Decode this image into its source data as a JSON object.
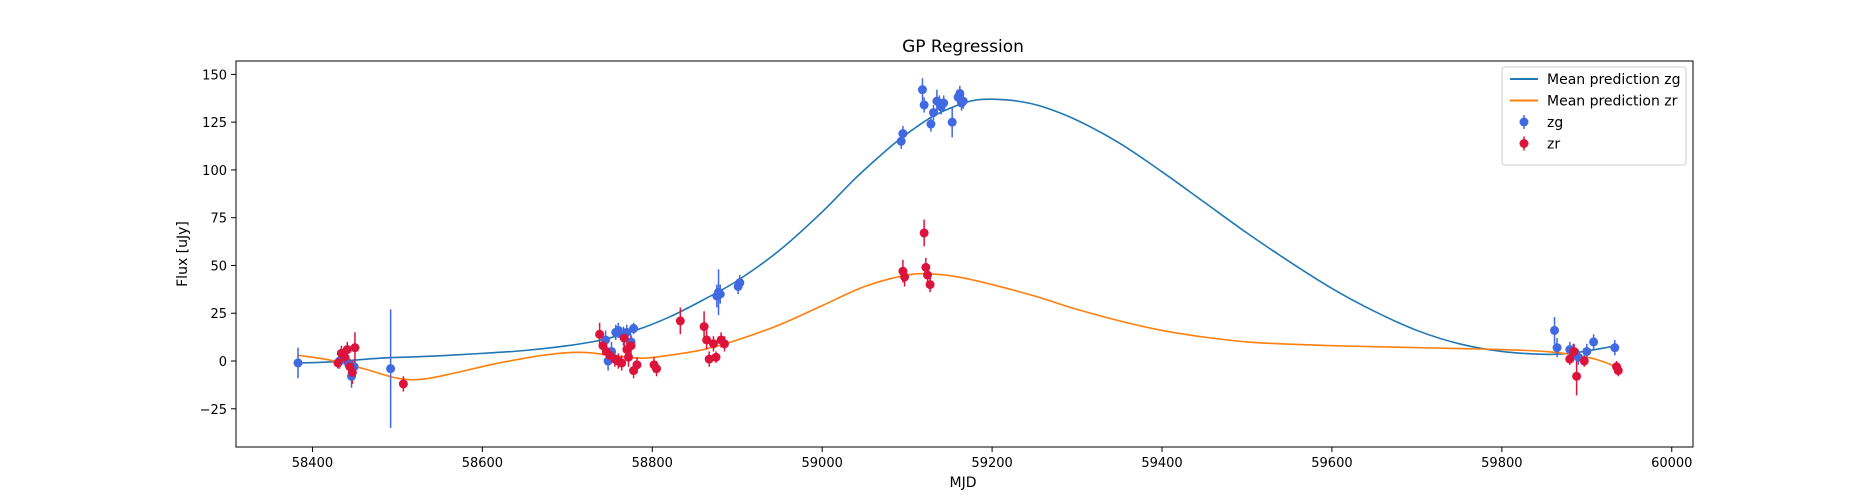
{
  "chart_data": {
    "type": "scatter",
    "title": "GP Regression",
    "xlabel": "MJD",
    "ylabel": "Flux [uJy]",
    "xlim": [
      58310,
      60025
    ],
    "ylim": [
      -45,
      157
    ],
    "xticks": [
      58400,
      58600,
      58800,
      59000,
      59200,
      59400,
      59600,
      59800,
      60000
    ],
    "yticks": [
      -25,
      0,
      25,
      50,
      75,
      100,
      125,
      150
    ],
    "grid": false,
    "legend_position": "top-right",
    "colors": {
      "line_zg": "#1f77b4",
      "line_zr": "#ff7f0e",
      "points_zg": "#4169e1",
      "points_zr": "#dc143c"
    },
    "lines": [
      {
        "name": "Mean prediction zg",
        "color": "#1f77b4",
        "x": [
          58383,
          58420,
          58480,
          58540,
          58600,
          58650,
          58700,
          58740,
          58780,
          58820,
          58860,
          58900,
          58950,
          59000,
          59040,
          59080,
          59100,
          59130,
          59160,
          59180,
          59200,
          59230,
          59260,
          59300,
          59350,
          59400,
          59450,
          59500,
          59550,
          59600,
          59650,
          59700,
          59750,
          59800,
          59850,
          59880,
          59910,
          59935
        ],
        "y": [
          -1,
          -0.5,
          1.5,
          2.5,
          4,
          5.5,
          8,
          11,
          16,
          23,
          32,
          42,
          58,
          78,
          96,
          112,
          119,
          128,
          134,
          136.5,
          137,
          136,
          133,
          126,
          114,
          99,
          83,
          67,
          52,
          38,
          26,
          16,
          9,
          5,
          3.5,
          4,
          6,
          8
        ]
      },
      {
        "name": "Mean prediction zr",
        "color": "#ff7f0e",
        "x": [
          58383,
          58420,
          58460,
          58500,
          58530,
          58570,
          58620,
          58680,
          58720,
          58760,
          58790,
          58820,
          58860,
          58900,
          58950,
          59000,
          59050,
          59100,
          59130,
          59160,
          59200,
          59250,
          59300,
          59350,
          59400,
          59450,
          59500,
          59550,
          59600,
          59650,
          59700,
          59750,
          59800,
          59850,
          59880,
          59910,
          59935
        ],
        "y": [
          3,
          0.5,
          -4,
          -9,
          -9.5,
          -6,
          -1,
          3.5,
          4.5,
          2.5,
          1.5,
          3,
          6,
          11,
          19,
          29,
          39,
          45,
          45.5,
          44,
          40,
          34,
          27,
          21,
          16,
          12.5,
          10,
          8.8,
          8,
          7.5,
          7,
          6.5,
          6,
          5,
          3.5,
          1,
          -3
        ]
      }
    ],
    "series": [
      {
        "name": "zg",
        "color": "#4169e1",
        "x": [
          58383,
          58432,
          58438,
          58443,
          58446,
          58449,
          58492,
          58745,
          58748,
          58752,
          58757,
          58760,
          58766,
          58770,
          58775,
          58778,
          58876,
          58878,
          58880,
          58901,
          58903,
          59093,
          59095,
          59118,
          59120,
          59128,
          59131,
          59135,
          59138,
          59140,
          59143,
          59153,
          59160,
          59162,
          59164,
          59166,
          59862,
          59865,
          59880,
          59884,
          59890,
          59900,
          59908,
          59933
        ],
        "y": [
          -1,
          0,
          2,
          -2,
          -8,
          -3,
          -4,
          11,
          0,
          5,
          15,
          16,
          13,
          15,
          10,
          17,
          34,
          36,
          35,
          39,
          41,
          115,
          119,
          142,
          134,
          124,
          130,
          136,
          135,
          133,
          135,
          125,
          138,
          140,
          135,
          136,
          16,
          7,
          6,
          5,
          2,
          5,
          10,
          7
        ],
        "yerr": [
          8,
          4,
          4,
          4,
          6,
          4,
          31,
          5,
          5,
          5,
          4,
          4,
          5,
          4,
          4,
          3,
          6,
          12,
          5,
          4,
          4,
          4,
          4,
          6,
          4,
          4,
          4,
          6,
          4,
          4,
          4,
          8,
          4,
          4,
          4,
          4,
          7,
          5,
          4,
          4,
          4,
          4,
          4,
          4
        ]
      },
      {
        "name": "zr",
        "color": "#dc143c",
        "x": [
          58430,
          58434,
          58438,
          58441,
          58444,
          58447,
          58450,
          58507,
          58738,
          58742,
          58746,
          58750,
          58756,
          58760,
          58764,
          58767,
          58770,
          58772,
          58775,
          58778,
          58782,
          58802,
          58805,
          58833,
          58861,
          58864,
          58867,
          58872,
          58875,
          58881,
          58885,
          59095,
          59097,
          59120,
          59122,
          59124,
          59127,
          59880,
          59885,
          59888,
          59897,
          59935,
          59937
        ],
        "y": [
          -1,
          4,
          2,
          6,
          -3,
          -6,
          7,
          -12,
          14,
          8,
          5,
          3,
          1,
          0,
          -1,
          12,
          6,
          2,
          8,
          -5,
          -2,
          -2,
          -4,
          21,
          18,
          11,
          1,
          9,
          2,
          11,
          9,
          47,
          44,
          67,
          49,
          45,
          40,
          1,
          5,
          -8,
          0,
          -3,
          -5
        ],
        "yerr": [
          3,
          4,
          3,
          4,
          4,
          6,
          8,
          4,
          6,
          5,
          4,
          4,
          4,
          4,
          4,
          5,
          5,
          5,
          5,
          4,
          4,
          4,
          4,
          7,
          8,
          5,
          4,
          4,
          3,
          4,
          4,
          6,
          5,
          7,
          5,
          4,
          4,
          3,
          4,
          10,
          3,
          3,
          3
        ]
      }
    ]
  }
}
